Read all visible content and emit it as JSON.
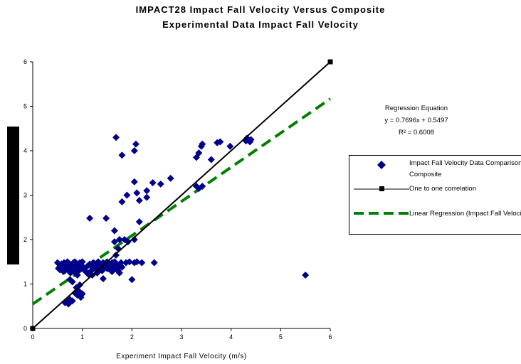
{
  "title_line1": "IMPACT28 Impact Fall Velocity Versus Composite",
  "title_line2": "Experimental Data Impact Fall Velocity",
  "regression": {
    "heading": "Regression Equation",
    "equation": "y = 0.7696x + 0.5497",
    "r2": "R² = 0.6008"
  },
  "legend": {
    "data_label": "Impact Fall Velocity Data Comparison Composite",
    "one_to_one_label": "One to one correlation",
    "regression_label": "Linear Regression (Impact Fall Velocity"
  },
  "colors": {
    "data": "#00008b",
    "one_to_one": "#000000",
    "regression": "#008000"
  },
  "chart_data": {
    "type": "scatter",
    "title": "IMPACT28 Impact Fall Velocity Versus Composite Experimental Data Impact Fall Velocity",
    "xlabel": "Experiment Impact Fall Velocity (m/s)",
    "ylabel": "",
    "xlim": [
      0,
      6
    ],
    "ylim": [
      0,
      6
    ],
    "xticks": [
      "0",
      "1",
      "2",
      "3",
      "4",
      "5",
      "6"
    ],
    "yticks": [
      "0",
      "1",
      "2",
      "3",
      "4",
      "5",
      "6"
    ],
    "grid": false,
    "legend_position": "right",
    "series": [
      {
        "name": "Impact Fall Velocity Data Comparison Composite",
        "marker": "diamond",
        "points": [
          [
            0.5,
            1.48
          ],
          [
            0.55,
            1.4
          ],
          [
            0.55,
            1.32
          ],
          [
            0.6,
            1.35
          ],
          [
            0.63,
            1.48
          ],
          [
            0.65,
            1.3
          ],
          [
            0.68,
            1.42
          ],
          [
            0.7,
            1.5
          ],
          [
            0.72,
            1.38
          ],
          [
            0.75,
            1.45
          ],
          [
            0.78,
            1.3
          ],
          [
            0.8,
            1.42
          ],
          [
            0.82,
            1.48
          ],
          [
            0.85,
            1.5
          ],
          [
            0.88,
            1.35
          ],
          [
            0.9,
            1.45
          ],
          [
            0.92,
            1.3
          ],
          [
            0.95,
            1.48
          ],
          [
            0.98,
            1.4
          ],
          [
            1.0,
            1.5
          ],
          [
            0.52,
            1.35
          ],
          [
            0.58,
            1.45
          ],
          [
            0.62,
            1.28
          ],
          [
            0.7,
            1.33
          ],
          [
            0.76,
            1.25
          ],
          [
            0.84,
            1.28
          ],
          [
            0.9,
            1.2
          ],
          [
            0.96,
            1.35
          ],
          [
            1.02,
            1.38
          ],
          [
            1.05,
            1.3
          ],
          [
            0.65,
            0.58
          ],
          [
            0.7,
            0.6
          ],
          [
            0.72,
            0.55
          ],
          [
            0.75,
            0.65
          ],
          [
            0.8,
            0.62
          ],
          [
            0.85,
            0.8
          ],
          [
            0.9,
            0.75
          ],
          [
            0.92,
            0.85
          ],
          [
            0.95,
            0.98
          ],
          [
            0.97,
            0.7
          ],
          [
            1.0,
            0.78
          ],
          [
            0.88,
            0.92
          ],
          [
            0.8,
            1.05
          ],
          [
            0.75,
            1.1
          ],
          [
            1.1,
            1.4
          ],
          [
            1.15,
            1.45
          ],
          [
            1.18,
            1.3
          ],
          [
            1.2,
            1.38
          ],
          [
            1.22,
            1.48
          ],
          [
            1.25,
            1.35
          ],
          [
            1.3,
            1.42
          ],
          [
            1.32,
            1.5
          ],
          [
            1.35,
            1.32
          ],
          [
            1.38,
            1.45
          ],
          [
            1.4,
            1.3
          ],
          [
            1.42,
            1.48
          ],
          [
            1.45,
            1.38
          ],
          [
            1.48,
            1.42
          ],
          [
            1.5,
            1.5
          ],
          [
            1.52,
            1.35
          ],
          [
            1.55,
            1.45
          ],
          [
            1.58,
            1.3
          ],
          [
            1.6,
            1.48
          ],
          [
            1.62,
            1.4
          ],
          [
            1.65,
            1.5
          ],
          [
            1.68,
            1.35
          ],
          [
            1.7,
            1.45
          ],
          [
            1.72,
            1.3
          ],
          [
            1.75,
            1.4
          ],
          [
            1.78,
            1.48
          ],
          [
            1.8,
            1.38
          ],
          [
            1.12,
            1.22
          ],
          [
            1.2,
            1.2
          ],
          [
            1.3,
            1.25
          ],
          [
            1.42,
            1.12
          ],
          [
            1.5,
            1.35
          ],
          [
            1.6,
            1.28
          ],
          [
            1.7,
            1.32
          ],
          [
            1.75,
            1.25
          ],
          [
            1.88,
            1.48
          ],
          [
            1.95,
            1.5
          ],
          [
            2.05,
            1.48
          ],
          [
            2.1,
            1.5
          ],
          [
            2.2,
            1.48
          ],
          [
            2.45,
            1.48
          ],
          [
            2.0,
            1.1
          ],
          [
            1.15,
            2.48
          ],
          [
            1.48,
            2.48
          ],
          [
            1.65,
            2.2
          ],
          [
            1.65,
            1.95
          ],
          [
            1.75,
            2.0
          ],
          [
            1.72,
            1.8
          ],
          [
            1.68,
            1.65
          ],
          [
            1.85,
            2.0
          ],
          [
            1.92,
            1.95
          ],
          [
            2.05,
            2.0
          ],
          [
            2.15,
            2.4
          ],
          [
            1.8,
            2.85
          ],
          [
            1.9,
            3.0
          ],
          [
            2.05,
            3.3
          ],
          [
            2.1,
            3.05
          ],
          [
            2.15,
            2.88
          ],
          [
            2.3,
            3.1
          ],
          [
            2.3,
            2.95
          ],
          [
            2.42,
            3.28
          ],
          [
            2.58,
            3.25
          ],
          [
            2.78,
            3.38
          ],
          [
            1.68,
            4.3
          ],
          [
            1.8,
            3.9
          ],
          [
            2.05,
            4.0
          ],
          [
            2.08,
            4.15
          ],
          [
            3.3,
            3.85
          ],
          [
            3.35,
            3.95
          ],
          [
            3.4,
            4.1
          ],
          [
            3.42,
            4.15
          ],
          [
            3.6,
            3.8
          ],
          [
            3.72,
            4.18
          ],
          [
            3.78,
            4.2
          ],
          [
            3.98,
            4.1
          ],
          [
            3.3,
            3.2
          ],
          [
            3.35,
            3.15
          ],
          [
            3.42,
            3.2
          ],
          [
            4.3,
            4.22
          ],
          [
            4.32,
            4.28
          ],
          [
            4.35,
            4.25
          ],
          [
            4.38,
            4.2
          ],
          [
            4.4,
            4.25
          ],
          [
            5.5,
            1.2
          ]
        ]
      },
      {
        "name": "One to one correlation",
        "marker": "square",
        "points": [
          [
            0,
            0
          ],
          [
            6,
            6
          ]
        ]
      },
      {
        "name": "Linear Regression (Impact Fall Velocity",
        "style": "dashed",
        "slope": 0.7696,
        "intercept": 0.5497,
        "x_range": [
          0,
          6
        ]
      }
    ]
  }
}
